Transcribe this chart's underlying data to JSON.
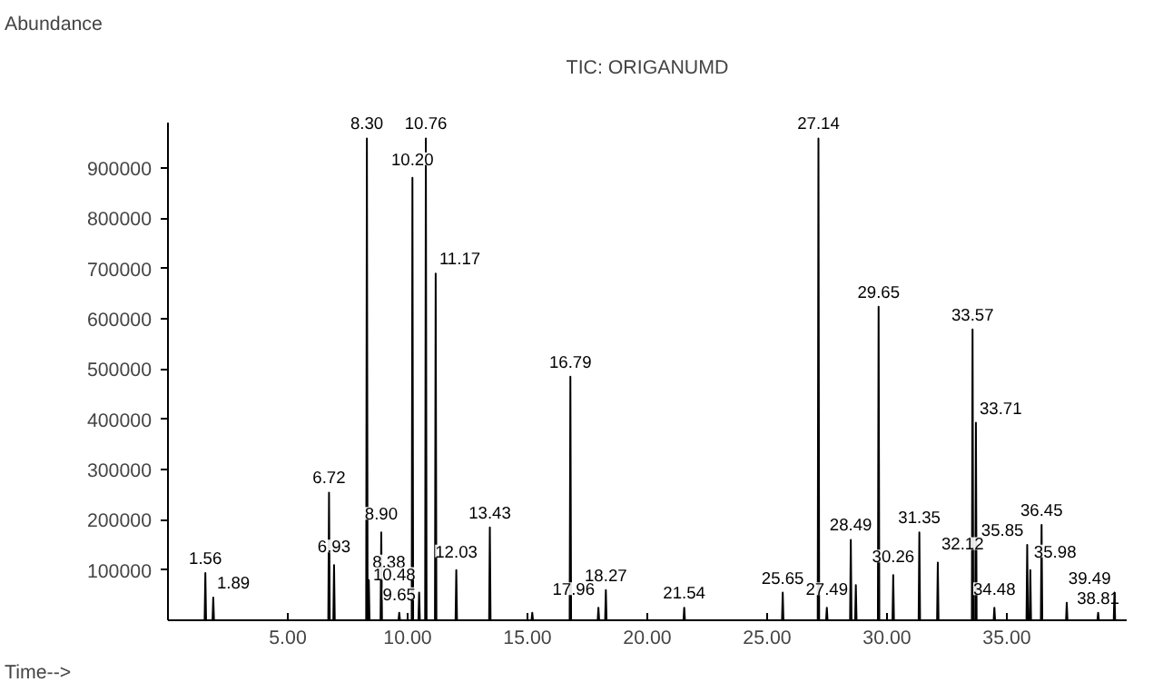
{
  "chart_data": {
    "type": "line",
    "title": "TIC: ORIGANUMD",
    "xlabel": "Time-->",
    "ylabel": "Abundance",
    "color": "#000000",
    "xlim": [
      0,
      40
    ],
    "ylim": [
      0,
      990000
    ],
    "xticks": [
      {
        "value": 5,
        "label": "5.00"
      },
      {
        "value": 10,
        "label": "10.00"
      },
      {
        "value": 15,
        "label": "15.00"
      },
      {
        "value": 20,
        "label": "20.00"
      },
      {
        "value": 25,
        "label": "25.00"
      },
      {
        "value": 30,
        "label": "30.00"
      },
      {
        "value": 35,
        "label": "35.00"
      }
    ],
    "yticks": [
      100000,
      200000,
      300000,
      400000,
      500000,
      600000,
      700000,
      800000,
      900000
    ],
    "x": [
      1.0,
      1.53,
      1.56,
      1.59,
      1.86,
      1.89,
      1.92,
      6.69,
      6.72,
      6.75,
      6.9,
      6.93,
      6.96,
      8.27,
      8.3,
      8.33,
      8.35,
      8.38,
      8.41,
      8.87,
      8.9,
      8.93,
      9.62,
      9.65,
      9.68,
      10.17,
      10.2,
      10.23,
      10.45,
      10.48,
      10.51,
      10.73,
      10.76,
      10.79,
      11.14,
      11.17,
      11.2,
      12.0,
      12.03,
      12.06,
      13.4,
      13.43,
      13.46,
      15.17,
      15.2,
      15.23,
      16.76,
      16.79,
      16.82,
      17.93,
      17.96,
      17.99,
      18.24,
      18.27,
      18.3,
      21.51,
      21.54,
      21.57,
      25.62,
      25.65,
      25.68,
      27.11,
      27.14,
      27.17,
      27.46,
      27.49,
      27.52,
      28.46,
      28.49,
      28.52,
      28.67,
      28.7,
      28.73,
      29.62,
      29.65,
      29.68,
      30.23,
      30.26,
      30.29,
      31.32,
      31.35,
      31.38,
      32.09,
      32.12,
      32.15,
      33.54,
      33.57,
      33.6,
      33.68,
      33.71,
      33.74,
      34.45,
      34.48,
      34.51,
      35.82,
      35.85,
      35.88,
      35.95,
      35.98,
      36.01,
      36.42,
      36.45,
      36.48,
      37.47,
      37.5,
      37.53,
      38.78,
      38.81,
      38.84,
      39.46,
      39.49,
      39.52,
      39.8
    ],
    "values": [
      0,
      0,
      94000,
      0,
      0,
      45000,
      0,
      0,
      254000,
      0,
      0,
      110000,
      0,
      0,
      959000,
      0,
      0,
      80000,
      0,
      0,
      175000,
      0,
      0,
      15000,
      0,
      0,
      881000,
      0,
      0,
      55000,
      0,
      0,
      959000,
      0,
      0,
      690000,
      0,
      0,
      100000,
      0,
      0,
      185000,
      0,
      0,
      15000,
      0,
      0,
      485000,
      0,
      0,
      25000,
      0,
      0,
      60000,
      0,
      0,
      25000,
      0,
      0,
      55000,
      0,
      0,
      959000,
      0,
      0,
      25000,
      0,
      0,
      160000,
      0,
      0,
      70000,
      0,
      0,
      624000,
      0,
      0,
      90000,
      0,
      0,
      175000,
      0,
      0,
      115000,
      0,
      0,
      579000,
      0,
      0,
      393000,
      0,
      0,
      25000,
      0,
      0,
      150000,
      0,
      0,
      100000,
      0,
      0,
      190000,
      0,
      0,
      35000,
      0,
      0,
      15000,
      0,
      0,
      55000,
      0,
      0
    ],
    "annotations": [
      {
        "text": "1.56",
        "x": 1.56,
        "y": 94000
      },
      {
        "text": "1.89",
        "x": 1.89,
        "y": 45000
      },
      {
        "text": "6.72",
        "x": 6.72,
        "y": 254000
      },
      {
        "text": "6.93",
        "x": 6.93,
        "y": 110000
      },
      {
        "text": "8.30",
        "x": 8.3,
        "y": 959000
      },
      {
        "text": "8.38",
        "x": 8.38,
        "y": 80000
      },
      {
        "text": "8.90",
        "x": 8.9,
        "y": 175000
      },
      {
        "text": "9.65",
        "x": 9.65,
        "y": 15000
      },
      {
        "text": "10.20",
        "x": 10.2,
        "y": 881000
      },
      {
        "text": "10.48",
        "x": 10.48,
        "y": 55000
      },
      {
        "text": "10.76",
        "x": 10.76,
        "y": 959000
      },
      {
        "text": "11.17",
        "x": 11.17,
        "y": 690000
      },
      {
        "text": "12.03",
        "x": 12.03,
        "y": 100000
      },
      {
        "text": "13.43",
        "x": 13.43,
        "y": 185000
      },
      {
        "text": "16.79",
        "x": 16.79,
        "y": 485000
      },
      {
        "text": "17.96",
        "x": 17.96,
        "y": 25000
      },
      {
        "text": "18.27",
        "x": 18.27,
        "y": 60000
      },
      {
        "text": "21.54",
        "x": 21.54,
        "y": 25000
      },
      {
        "text": "25.65",
        "x": 25.65,
        "y": 55000
      },
      {
        "text": "27.14",
        "x": 27.14,
        "y": 959000
      },
      {
        "text": "27.49",
        "x": 27.49,
        "y": 25000
      },
      {
        "text": "28.49",
        "x": 28.49,
        "y": 160000
      },
      {
        "text": "29.65",
        "x": 29.65,
        "y": 624000
      },
      {
        "text": "30.26",
        "x": 30.26,
        "y": 90000
      },
      {
        "text": "31.35",
        "x": 31.35,
        "y": 175000
      },
      {
        "text": "32.12",
        "x": 32.12,
        "y": 115000
      },
      {
        "text": "33.57",
        "x": 33.57,
        "y": 579000
      },
      {
        "text": "33.71",
        "x": 33.71,
        "y": 393000
      },
      {
        "text": "34.48",
        "x": 34.48,
        "y": 25000
      },
      {
        "text": "35.85",
        "x": 35.85,
        "y": 150000
      },
      {
        "text": "35.98",
        "x": 35.98,
        "y": 100000
      },
      {
        "text": "36.45",
        "x": 36.45,
        "y": 190000
      },
      {
        "text": "38.81",
        "x": 38.81,
        "y": 15000
      },
      {
        "text": "39.49",
        "x": 39.49,
        "y": 55000
      }
    ]
  }
}
